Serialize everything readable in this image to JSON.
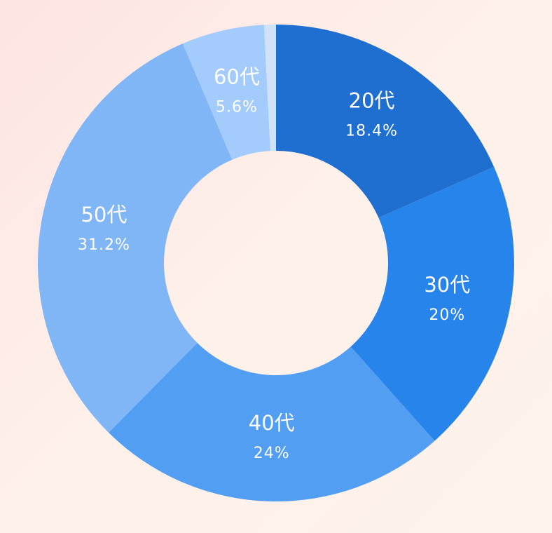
{
  "chart_data": {
    "type": "donut",
    "categories": [
      "20代",
      "30代",
      "40代",
      "50代",
      "60代",
      null
    ],
    "values": [
      18.4,
      20,
      24,
      31.2,
      5.6,
      0.8
    ],
    "value_labels": [
      "18.4%",
      "20%",
      "24%",
      "31.2%",
      "5.6%",
      null
    ],
    "colors": [
      "#1f6fd0",
      "#2784ea",
      "#529ef2",
      "#80b6f6",
      "#a3cbfb",
      "#cfe2f8"
    ]
  }
}
